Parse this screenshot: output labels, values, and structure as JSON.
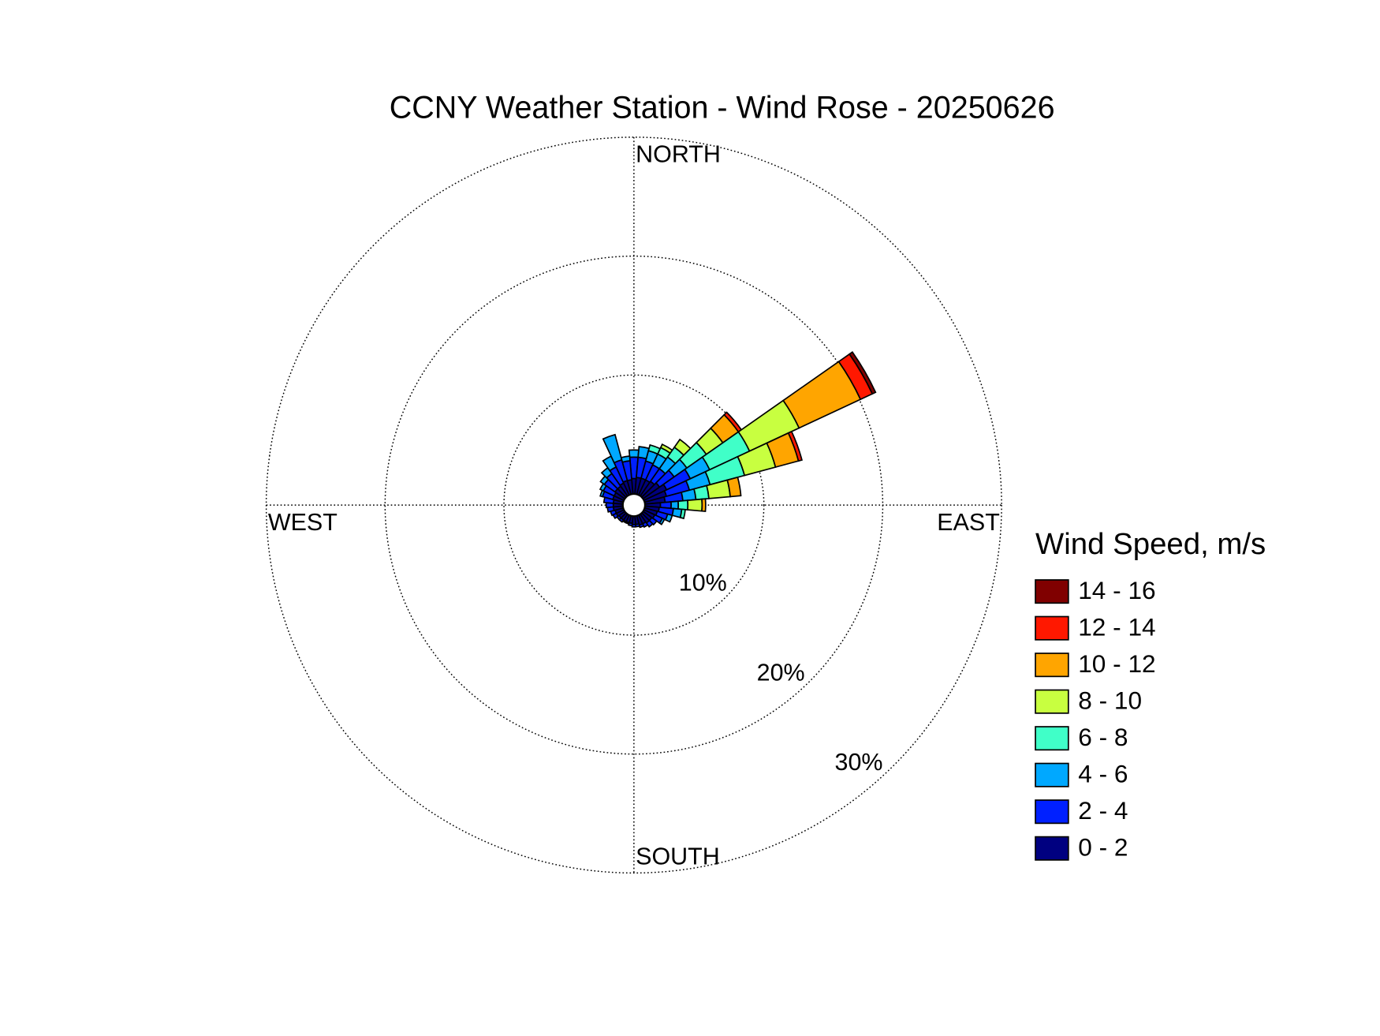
{
  "chart_data": {
    "type": "windrose",
    "title": "CCNY Weather Station - Wind Rose - 20250626",
    "legend_title": "Wind Speed, m/s",
    "direction_labels": [
      "NORTH",
      "EAST",
      "SOUTH",
      "WEST"
    ],
    "directions": [
      0,
      10,
      20,
      30,
      40,
      50,
      60,
      70,
      80,
      90,
      100,
      110,
      120,
      130,
      140,
      150,
      160,
      170,
      180,
      190,
      200,
      210,
      220,
      230,
      240,
      250,
      260,
      270,
      280,
      290,
      300,
      310,
      320,
      330,
      340,
      350
    ],
    "rlim": [
      0,
      30
    ],
    "rticks": [
      {
        "value": 10,
        "label": "10%"
      },
      {
        "value": 20,
        "label": "20%"
      },
      {
        "value": 30,
        "label": "30%"
      }
    ],
    "grid": true,
    "series": [
      {
        "name": "0 - 2",
        "color": "#000080",
        "values": [
          1.3,
          1.4,
          1.4,
          1.4,
          1.5,
          1.7,
          2.1,
          1.9,
          1.7,
          1.3,
          1.2,
          1.1,
          1.0,
          0.9,
          0.9,
          0.8,
          0.8,
          0.7,
          0.7,
          0.6,
          0.6,
          0.6,
          0.6,
          0.6,
          0.7,
          0.7,
          0.8,
          0.8,
          0.8,
          0.9,
          0.9,
          1.0,
          1.0,
          1.1,
          1.2,
          1.2
        ]
      },
      {
        "name": "2 - 4",
        "color": "#0020ff",
        "values": [
          1.8,
          1.7,
          1.5,
          1.4,
          1.3,
          1.5,
          2.2,
          2.0,
          1.5,
          0.9,
          1.2,
          0.9,
          0.7,
          0.5,
          0.4,
          0.3,
          0.2,
          0.2,
          0.2,
          0.2,
          0.1,
          0.1,
          0.2,
          0.2,
          0.3,
          0.4,
          0.5,
          0.6,
          0.8,
          0.9,
          1.0,
          1.1,
          1.3,
          1.5,
          1.8,
          1.6
        ]
      },
      {
        "name": "4 - 6",
        "color": "#00a8ff",
        "values": [
          0.6,
          0.9,
          0.9,
          1.0,
          1.2,
          1.3,
          1.8,
          1.8,
          1.1,
          0.6,
          0.7,
          0.4,
          0.2,
          0,
          0,
          0,
          0,
          0,
          0,
          0,
          0,
          0,
          0,
          0,
          0,
          0,
          0,
          0,
          0,
          0.2,
          0.3,
          0.4,
          0.6,
          1.0,
          2.2,
          0.4
        ]
      },
      {
        "name": "6 - 8",
        "color": "#40ffc8",
        "values": [
          0,
          0,
          0.5,
          0.6,
          1.0,
          2.0,
          3.7,
          3.0,
          1.1,
          0.8,
          0.3,
          0,
          0,
          0,
          0,
          0,
          0,
          0,
          0,
          0,
          0,
          0,
          0,
          0,
          0,
          0,
          0,
          0,
          0,
          0,
          0,
          0,
          0,
          0,
          0,
          0
        ]
      },
      {
        "name": "8 - 10",
        "color": "#c8ff40",
        "values": [
          0,
          0,
          0,
          0.3,
          0.8,
          1.7,
          4.6,
          2.7,
          1.8,
          1.2,
          0,
          0,
          0,
          0,
          0,
          0,
          0,
          0,
          0,
          0,
          0,
          0,
          0,
          0,
          0,
          0,
          0,
          0,
          0,
          0,
          0,
          0,
          0,
          0,
          0,
          0
        ]
      },
      {
        "name": "10 - 12",
        "color": "#ffa500",
        "values": [
          0,
          0,
          0,
          0,
          0,
          1.6,
          5.7,
          2.0,
          0.9,
          0.3,
          0,
          0,
          0,
          0,
          0,
          0,
          0,
          0,
          0,
          0,
          0,
          0,
          0,
          0,
          0,
          0,
          0,
          0,
          0,
          0,
          0,
          0,
          0,
          0,
          0,
          0
        ]
      },
      {
        "name": "12 - 14",
        "color": "#ff1800",
        "values": [
          0,
          0,
          0,
          0,
          0,
          0.3,
          1.1,
          0.3,
          0,
          0,
          0,
          0,
          0,
          0,
          0,
          0,
          0,
          0,
          0,
          0,
          0,
          0,
          0,
          0,
          0,
          0,
          0,
          0,
          0,
          0,
          0,
          0,
          0,
          0,
          0,
          0
        ]
      },
      {
        "name": "14 - 16",
        "color": "#800000",
        "values": [
          0,
          0,
          0,
          0,
          0,
          0,
          0.3,
          0,
          0,
          0,
          0,
          0,
          0,
          0,
          0,
          0,
          0,
          0,
          0,
          0,
          0,
          0,
          0,
          0,
          0,
          0,
          0,
          0,
          0,
          0,
          0,
          0,
          0,
          0,
          0,
          0
        ]
      }
    ]
  }
}
